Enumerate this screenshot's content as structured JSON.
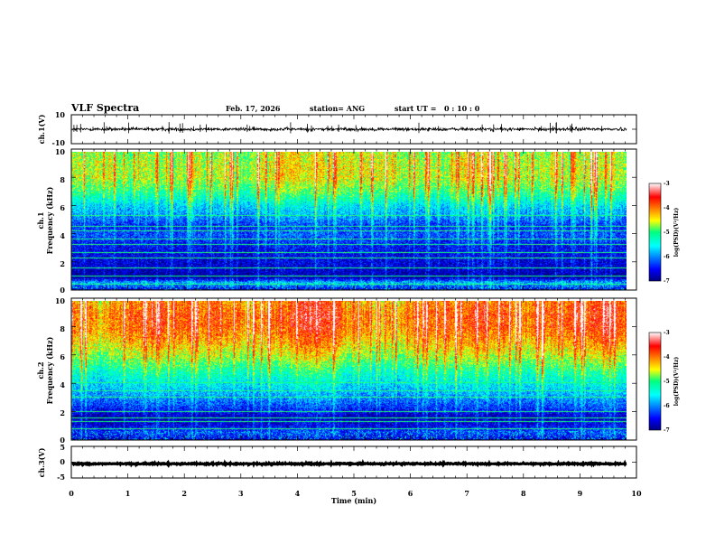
{
  "chart_data": {
    "type": "heatmap",
    "title": "VLF Spectra",
    "date": "Feb. 17, 2026",
    "station": "station= ANG",
    "start_ut_label": "start  UT =",
    "start_ut_value": "0  : 10 : 0",
    "xlabel": "Time  (min)",
    "xlim": [
      0,
      10
    ],
    "x_ticks": [
      "0",
      "1",
      "2",
      "3",
      "4",
      "5",
      "6",
      "7",
      "8",
      "9",
      "10"
    ],
    "data_end_min": 9.83,
    "panels": [
      {
        "kind": "waveform",
        "ylabel": "ch.1(V)",
        "ylim": [
          -10,
          10
        ],
        "y_ticks": [
          "10",
          "-10"
        ],
        "baseline": 0,
        "noise_amplitude": 0.8
      },
      {
        "kind": "spectrogram",
        "ylabel": "ch.1",
        "ylabel2": "Frequency  (kHz)",
        "ylim": [
          0,
          10
        ],
        "y_ticks": [
          "0",
          "2",
          "4",
          "6",
          "8",
          "10"
        ],
        "log_psd_range": [
          -7,
          -3
        ],
        "colorbar_ticks": [
          "-3",
          "-4",
          "-5",
          "-6",
          "-7"
        ],
        "colorbar_label": "log(PSD)(V²/Hz)",
        "profile": [
          [
            0.0,
            -6.6
          ],
          [
            0.5,
            -5.9
          ],
          [
            0.9,
            -6.9
          ],
          [
            1.6,
            -6.7
          ],
          [
            2.5,
            -6.6
          ],
          [
            3.2,
            -6.5
          ],
          [
            4.0,
            -6.2
          ],
          [
            4.6,
            -6.4
          ],
          [
            5.2,
            -6.0
          ],
          [
            6.0,
            -5.7
          ],
          [
            6.8,
            -5.2
          ],
          [
            7.4,
            -4.9
          ],
          [
            8.2,
            -4.6
          ],
          [
            9.0,
            -4.6
          ],
          [
            10.0,
            -4.7
          ]
        ],
        "lines_khz": [
          0.4,
          1.0,
          1.6,
          2.3,
          2.7,
          3.3,
          3.7,
          4.3,
          4.6,
          5.4
        ]
      },
      {
        "kind": "spectrogram",
        "ylabel": "ch.2",
        "ylabel2": "Frequency  (kHz)",
        "ylim": [
          0,
          10
        ],
        "y_ticks": [
          "0",
          "2",
          "4",
          "6",
          "8",
          "10"
        ],
        "log_psd_range": [
          -7,
          -3
        ],
        "colorbar_ticks": [
          "-3",
          "-4",
          "-5",
          "-6",
          "-7"
        ],
        "colorbar_label": "log(PSD)(V²/Hz)",
        "profile": [
          [
            0.0,
            -6.7
          ],
          [
            0.5,
            -6.3
          ],
          [
            1.0,
            -6.6
          ],
          [
            1.6,
            -6.8
          ],
          [
            2.2,
            -6.4
          ],
          [
            3.0,
            -6.0
          ],
          [
            4.0,
            -5.6
          ],
          [
            5.0,
            -5.2
          ],
          [
            6.0,
            -4.7
          ],
          [
            7.0,
            -4.3
          ],
          [
            8.0,
            -4.0
          ],
          [
            9.0,
            -3.9
          ],
          [
            10.0,
            -4.1
          ]
        ],
        "lines_khz": [
          0.8,
          1.3,
          1.6,
          2.0,
          3.1,
          3.5,
          4.1
        ]
      },
      {
        "kind": "waveform",
        "ylabel": "ch.3(V)",
        "ylim": [
          -5,
          5
        ],
        "y_ticks": [
          "5",
          "0",
          "-5"
        ],
        "baseline": -0.5,
        "noise_amplitude": 0.15
      }
    ]
  }
}
